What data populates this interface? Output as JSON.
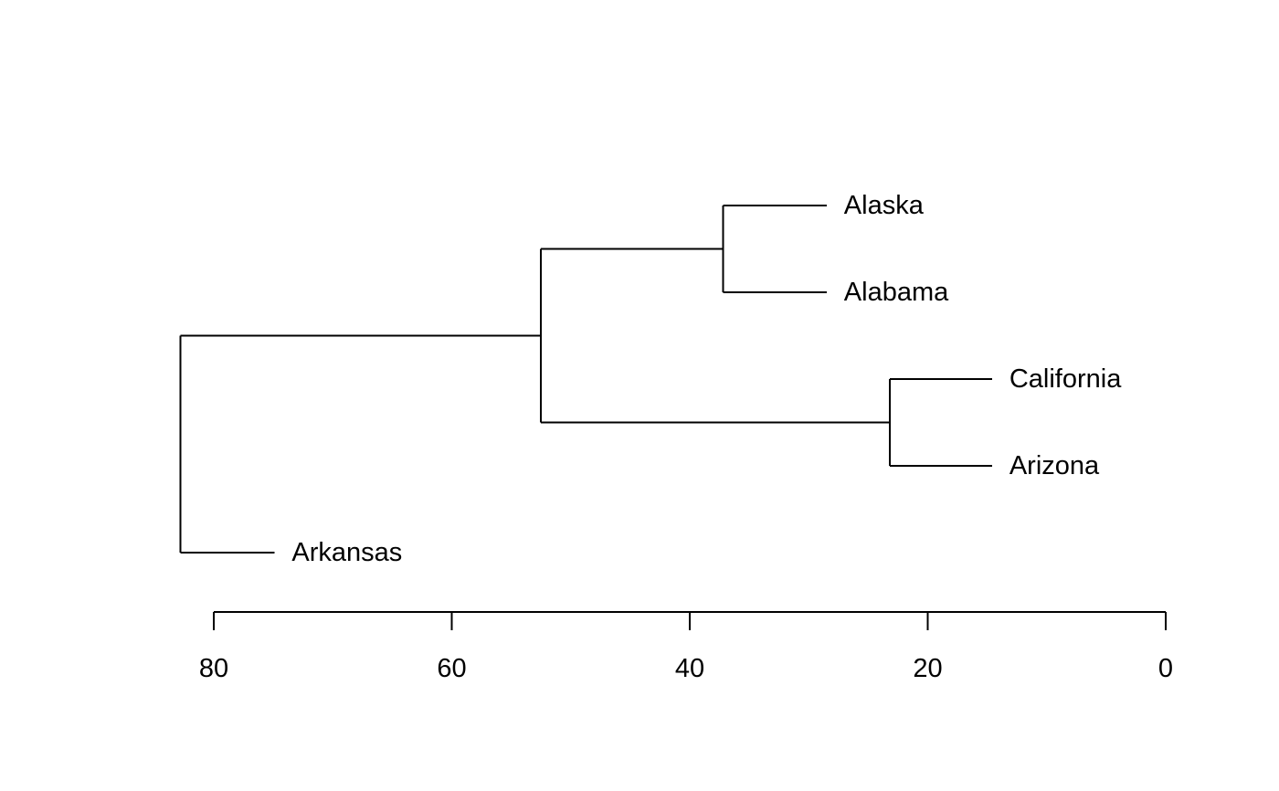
{
  "chart_data": {
    "type": "dendrogram",
    "orientation": "horizontal",
    "x_axis_reversed": true,
    "xlim": [
      0,
      80
    ],
    "x_ticks": [
      80,
      60,
      40,
      20,
      0
    ],
    "x_tick_labels": [
      "80",
      "60",
      "40",
      "20",
      "0"
    ],
    "leaf_order": [
      "Alaska",
      "Alabama",
      "California",
      "Arizona",
      "Arkansas"
    ],
    "leaves": [
      {
        "id": "Alaska",
        "label": "Alaska",
        "height": 28.5
      },
      {
        "id": "Alabama",
        "label": "Alabama",
        "height": 28.5
      },
      {
        "id": "California",
        "label": "California",
        "height": 14.6
      },
      {
        "id": "Arizona",
        "label": "Arizona",
        "height": 14.6
      },
      {
        "id": "Arkansas",
        "label": "Arkansas",
        "height": 74.9
      }
    ],
    "merges": [
      {
        "id": "m1",
        "children": [
          "Alaska",
          "Alabama"
        ],
        "height": 37.2
      },
      {
        "id": "m2",
        "children": [
          "California",
          "Arizona"
        ],
        "height": 23.2
      },
      {
        "id": "m3",
        "children": [
          "m1",
          "m2"
        ],
        "height": 52.5
      },
      {
        "id": "m4",
        "children": [
          "m3",
          "Arkansas"
        ],
        "height": 82.8
      }
    ]
  }
}
